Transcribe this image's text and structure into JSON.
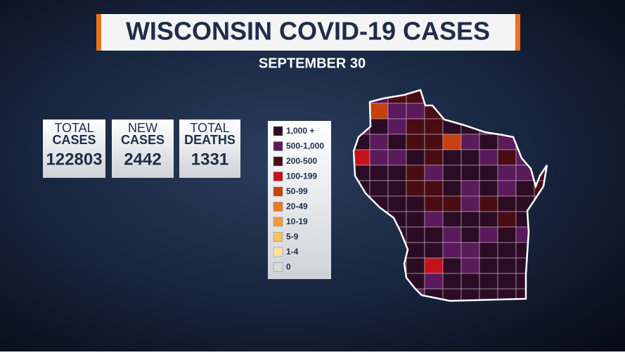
{
  "header": {
    "title": "WISCONSIN COVID-19 CASES",
    "date": "SEPTEMBER 30"
  },
  "stats": [
    {
      "label": [
        "TOTAL",
        "CASES"
      ],
      "value": 122803
    },
    {
      "label": [
        "NEW",
        "CASES"
      ],
      "value": 2442
    },
    {
      "label": [
        "TOTAL",
        "DEATHS"
      ],
      "value": 1331
    }
  ],
  "legend": [
    {
      "label": "1,000 +",
      "color": "#2b0c24"
    },
    {
      "label": "500-1,000",
      "color": "#5a1a5c"
    },
    {
      "label": "200-500",
      "color": "#4a0d14"
    },
    {
      "label": "100-199",
      "color": "#c4121c"
    },
    {
      "label": "50-99",
      "color": "#c8400e"
    },
    {
      "label": "20-49",
      "color": "#ee7a1c"
    },
    {
      "label": "10-19",
      "color": "#f39a3c"
    },
    {
      "label": "5-9",
      "color": "#f8c25a"
    },
    {
      "label": "1-4",
      "color": "#fbe0a0"
    },
    {
      "label": "0",
      "color": "#d9d9d9"
    }
  ]
}
